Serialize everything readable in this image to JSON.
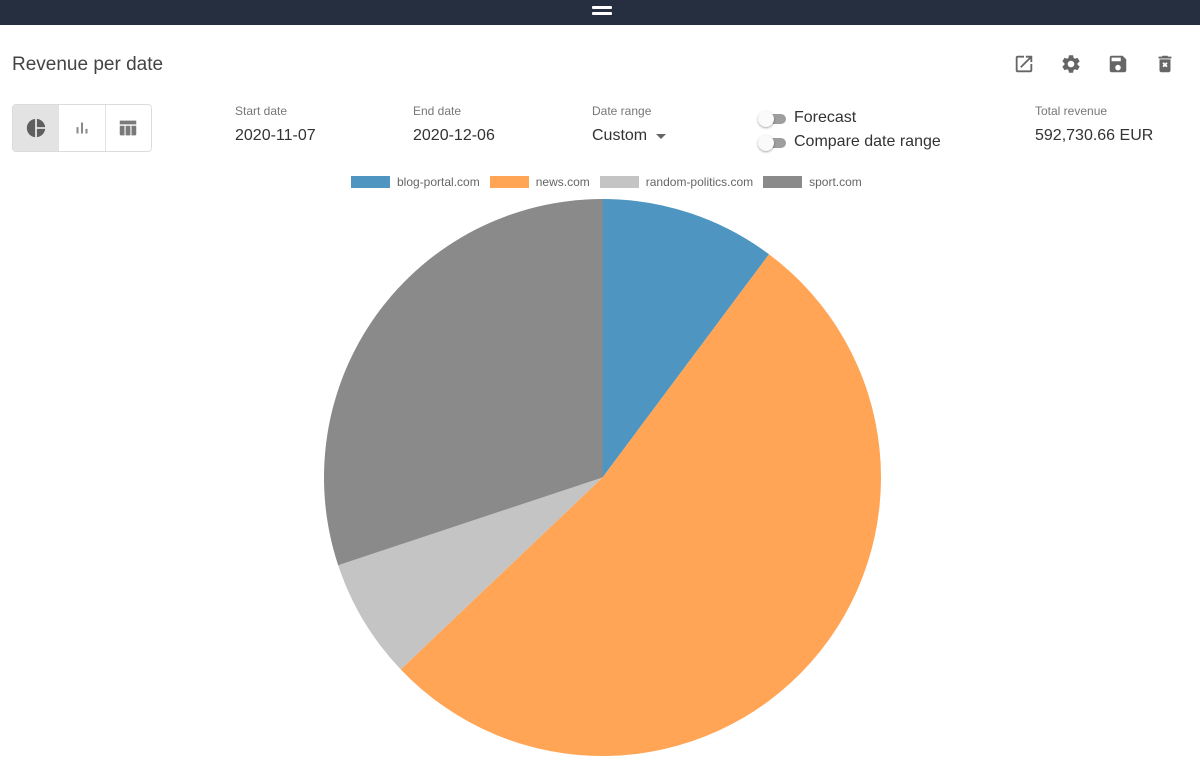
{
  "topbar": {
    "drag_handle_icon": "drag-handle-icon"
  },
  "widget": {
    "title": "Revenue per date",
    "actions": [
      {
        "name": "open-external-button",
        "icon": "open-in-new-icon"
      },
      {
        "name": "settings-button",
        "icon": "gear-icon"
      },
      {
        "name": "save-button",
        "icon": "floppy-disk-icon"
      },
      {
        "name": "delete-button",
        "icon": "trash-icon"
      }
    ],
    "view_modes": [
      {
        "name": "pie",
        "icon": "pie-chart-icon",
        "active": true
      },
      {
        "name": "bar",
        "icon": "bar-chart-icon",
        "active": false
      },
      {
        "name": "table",
        "icon": "table-icon",
        "active": false
      }
    ]
  },
  "filters": {
    "start_date": {
      "label": "Start date",
      "value": "2020-11-07"
    },
    "end_date": {
      "label": "End date",
      "value": "2020-12-06"
    },
    "date_range": {
      "label": "Date range",
      "value": "Custom"
    },
    "forecast": {
      "label": "Forecast",
      "enabled": false
    },
    "compare": {
      "label": "Compare date range",
      "enabled": false
    },
    "total_revenue": {
      "label": "Total revenue",
      "value": "592,730.66 EUR"
    }
  },
  "colors": {
    "blog-portal.com": "#4e96c1",
    "news.com": "#ffa555",
    "random-politics.com": "#c4c4c4",
    "sport.com": "#8a8a8a"
  },
  "chart_data": {
    "type": "pie",
    "title": "Revenue per date",
    "categories": [
      "blog-portal.com",
      "news.com",
      "random-politics.com",
      "sport.com"
    ],
    "values": [
      10.2,
      52.7,
      7.0,
      30.1
    ],
    "unit": "percent of total revenue (estimated from slice angles)",
    "colors": [
      "#4e96c1",
      "#ffa555",
      "#c4c4c4",
      "#8a8a8a"
    ],
    "legend_position": "top",
    "start_angle": "12 o'clock, clockwise"
  }
}
